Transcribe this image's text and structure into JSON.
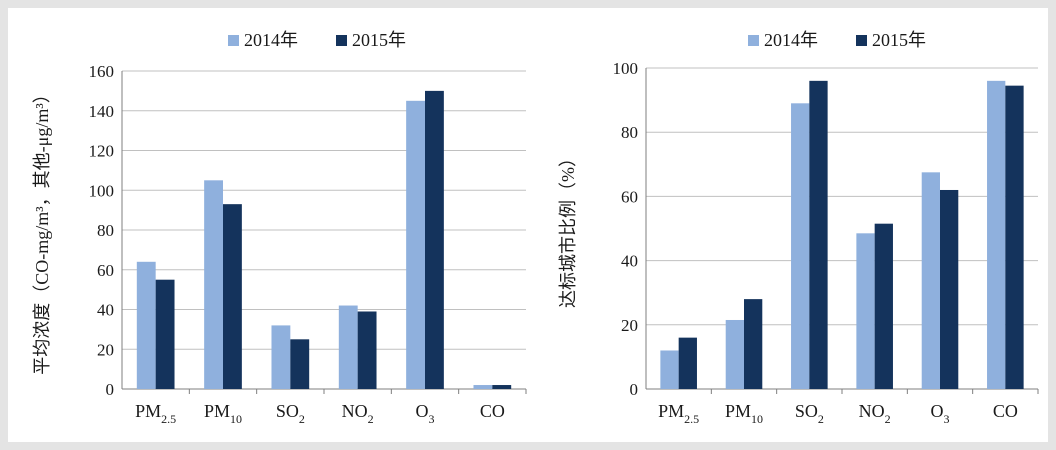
{
  "colors": {
    "series_2014": "#8fb0dd",
    "series_2015": "#14335c",
    "grid": "#c0c0c0",
    "axis": "#7f7f7f"
  },
  "chart_data": [
    {
      "type": "bar",
      "title": "",
      "xlabel": "",
      "ylabel": "平均浓度（CO-mg/m³，其他-μg/m³）",
      "ylim": [
        0,
        160
      ],
      "yticks": [
        0,
        20,
        40,
        60,
        80,
        100,
        120,
        140,
        160
      ],
      "grid": true,
      "legend": "top-center",
      "categories": [
        {
          "main": "PM",
          "sub": "2.5"
        },
        {
          "main": "PM",
          "sub": "10"
        },
        {
          "main": "SO",
          "sub": "2"
        },
        {
          "main": "NO",
          "sub": "2"
        },
        {
          "main": "O",
          "sub": "3"
        },
        {
          "main": "CO",
          "sub": ""
        }
      ],
      "series": [
        {
          "name": "2014年",
          "values": [
            64,
            105,
            32,
            42,
            145,
            2
          ]
        },
        {
          "name": "2015年",
          "values": [
            55,
            93,
            25,
            39,
            150,
            2
          ]
        }
      ]
    },
    {
      "type": "bar",
      "title": "",
      "xlabel": "",
      "ylabel": "达标城市比例（%）",
      "ylim": [
        0,
        100
      ],
      "yticks": [
        0,
        20,
        40,
        60,
        80,
        100
      ],
      "grid": true,
      "legend": "top-center",
      "categories": [
        {
          "main": "PM",
          "sub": "2.5"
        },
        {
          "main": "PM",
          "sub": "10"
        },
        {
          "main": "SO",
          "sub": "2"
        },
        {
          "main": "NO",
          "sub": "2"
        },
        {
          "main": "O",
          "sub": "3"
        },
        {
          "main": "CO",
          "sub": ""
        }
      ],
      "series": [
        {
          "name": "2014年",
          "values": [
            12,
            21.5,
            89,
            48.5,
            67.5,
            96
          ]
        },
        {
          "name": "2015年",
          "values": [
            16,
            28,
            96,
            51.5,
            62,
            94.5
          ]
        }
      ]
    }
  ]
}
